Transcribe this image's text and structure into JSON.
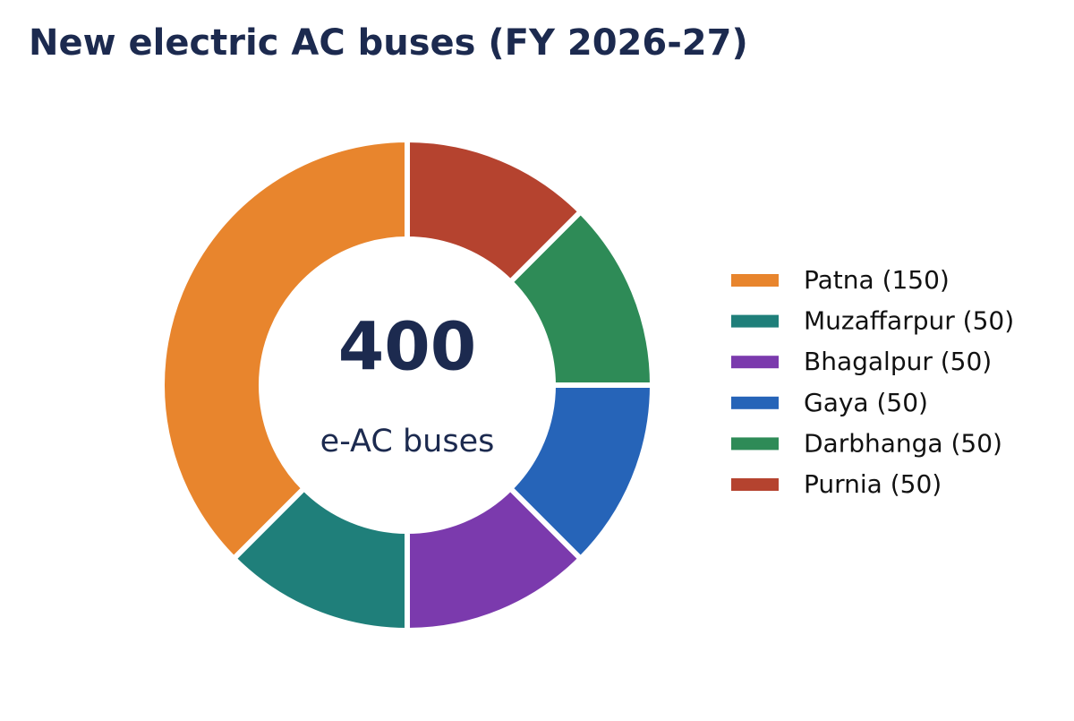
{
  "chart_data": {
    "type": "donut",
    "title": "New electric AC buses (FY 2026-27)",
    "categories": [
      "Patna (150)",
      "Muzaffarpur (50)",
      "Bhagalpur (50)",
      "Gaya (50)",
      "Darbhanga (50)",
      "Purnia (50)"
    ],
    "values": [
      150,
      50,
      50,
      50,
      50,
      50
    ],
    "colors": [
      "#e8852d",
      "#1f7f7a",
      "#7b3aad",
      "#2664b8",
      "#2e8b57",
      "#b5432f"
    ],
    "center_value": 400,
    "center_label": "e-AC buses",
    "legend": "right"
  }
}
